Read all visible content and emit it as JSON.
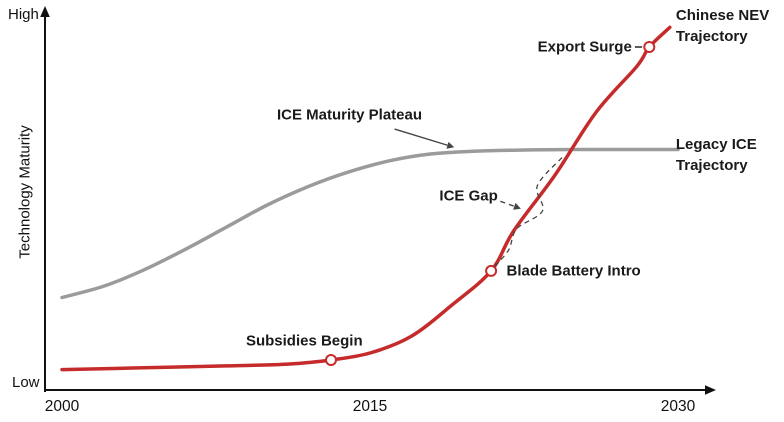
{
  "chart_data": {
    "type": "line",
    "title": "",
    "xlabel": "",
    "ylabel": "Technology Maturity",
    "y_high_label": "High",
    "y_low_label": "Low",
    "x_ticks": [
      "2000",
      "2015",
      "2030"
    ],
    "x_domain": [
      2000,
      2030
    ],
    "y_domain": [
      0,
      100
    ],
    "grid": false,
    "legend_position": "inline-right",
    "colors": {
      "nev_red": "#c62b2b",
      "ice_gray": "#9b9b9b",
      "axis_black": "#111111",
      "annotation_dark": "#444444"
    },
    "series": [
      {
        "name": "Legacy ICE Trajectory",
        "color": "#9b9b9b",
        "x": [
          2000,
          2002,
          2004,
          2006,
          2008,
          2010,
          2012,
          2014,
          2016,
          2018,
          2020,
          2022,
          2025,
          2030
        ],
        "values": [
          25,
          28,
          32.5,
          38,
          44,
          50,
          55,
          59,
          62,
          63.8,
          64.5,
          64.8,
          65,
          65
        ]
      },
      {
        "name": "Chinese NEV Trajectory",
        "color": "#c62b2b",
        "x": [
          2000,
          2004,
          2008,
          2011,
          2013.1,
          2015,
          2017,
          2019,
          2020.9,
          2022,
          2024,
          2026,
          2028,
          2028.6,
          2029.6
        ],
        "values": [
          5.5,
          6,
          6.5,
          7,
          8.1,
          10,
          14.5,
          23,
          32.2,
          43,
          58,
          75,
          87.5,
          92.7,
          98
        ]
      }
    ],
    "markers": [
      {
        "label": "Subsidies Begin",
        "x": 2013.1,
        "y": 8.1
      },
      {
        "label": "Blade Battery Intro",
        "x": 2020.9,
        "y": 32.2
      },
      {
        "label": "Export Surge",
        "x": 2028.6,
        "y": 92.7
      }
    ],
    "gap_outline": [
      [
        2024.35,
        62.8
      ],
      [
        2023.15,
        55.2
      ],
      [
        2023.4,
        48.4
      ],
      [
        2022.15,
        43.6
      ],
      [
        2021.75,
        37.8
      ],
      [
        2021.05,
        33.3
      ]
    ],
    "annotations": [
      {
        "id": "ice-plateau-label",
        "text": "ICE Maturity Plateau",
        "x": 2014.0,
        "y": 74.3,
        "align": "center",
        "arrow": {
          "from": [
            2016.2,
            70.5
          ],
          "to": [
            2019.1,
            65.6
          ],
          "style": "solid"
        }
      },
      {
        "id": "ice-gap-label",
        "text": "ICE Gap",
        "x": 2019.8,
        "y": 52.4,
        "align": "center",
        "arrow": {
          "from": [
            2021.35,
            51.0
          ],
          "to": [
            2022.35,
            49.0
          ],
          "style": "dashed"
        }
      },
      {
        "id": "subsidies-begin-label",
        "text": "Subsidies Begin",
        "x": 2011.8,
        "y": 13.3,
        "align": "center"
      },
      {
        "id": "blade-battery-label",
        "text": "Blade Battery Intro",
        "x": 2021.65,
        "y": 32.2,
        "align": "left"
      },
      {
        "id": "export-surge-label",
        "text": "Export Surge",
        "x": 2027.75,
        "y": 92.7,
        "align": "right",
        "leader": {
          "from": [
            2027.9,
            92.7
          ],
          "to": [
            2028.25,
            92.7
          ]
        }
      },
      {
        "id": "nev-trajectory-label",
        "lines": [
          "Chinese NEV",
          "Trajectory"
        ],
        "x": 2029.9,
        "y": 98.5,
        "align": "left"
      },
      {
        "id": "ice-trajectory-label",
        "lines": [
          "Legacy ICE",
          "Trajectory"
        ],
        "x": 2029.9,
        "y": 63.5,
        "align": "left"
      }
    ]
  }
}
